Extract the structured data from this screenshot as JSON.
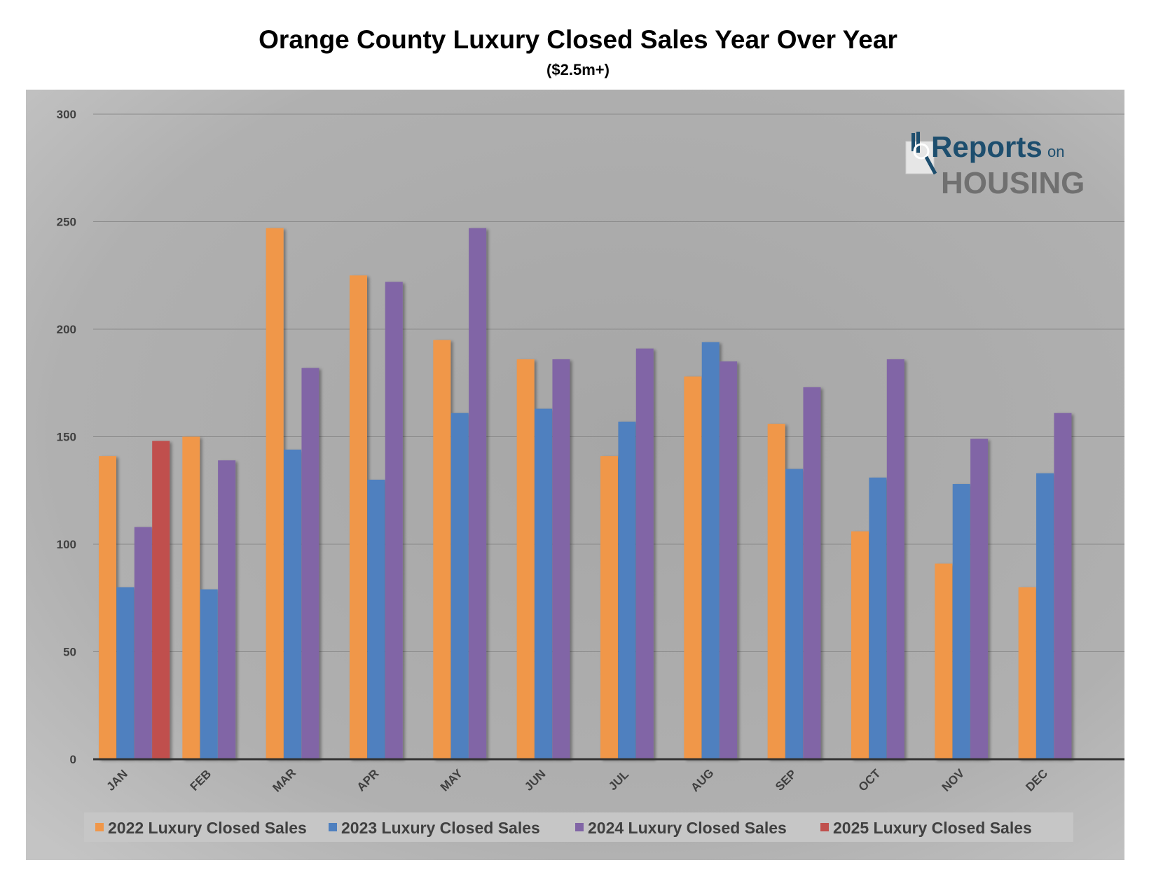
{
  "chart_data": {
    "type": "bar",
    "title": "Orange County Luxury Closed Sales Year Over Year",
    "subtitle": "($2.5m+)",
    "xlabel": "",
    "ylabel": "",
    "ylim": [
      0,
      300
    ],
    "yticks": [
      0,
      50,
      100,
      150,
      200,
      250,
      300
    ],
    "grid": true,
    "legend_position": "bottom",
    "categories": [
      "JAN",
      "FEB",
      "MAR",
      "APR",
      "MAY",
      "JUN",
      "JUL",
      "AUG",
      "SEP",
      "OCT",
      "NOV",
      "DEC"
    ],
    "series": [
      {
        "name": "2022 Luxury Closed Sales",
        "color": "#f0974a",
        "values": [
          141,
          150,
          247,
          225,
          195,
          186,
          141,
          178,
          156,
          106,
          91,
          80
        ]
      },
      {
        "name": "2023 Luxury Closed Sales",
        "color": "#4f80bf",
        "values": [
          80,
          79,
          144,
          130,
          161,
          163,
          157,
          194,
          135,
          131,
          128,
          133
        ]
      },
      {
        "name": "2024 Luxury Closed Sales",
        "color": "#8165a6",
        "values": [
          108,
          139,
          182,
          222,
          247,
          186,
          191,
          185,
          173,
          186,
          149,
          161
        ]
      },
      {
        "name": "2025 Luxury Closed Sales",
        "color": "#c0504d",
        "values": [
          148,
          null,
          null,
          null,
          null,
          null,
          null,
          null,
          null,
          null,
          null,
          null
        ]
      }
    ]
  },
  "logo": {
    "text_top": "Reports",
    "text_on": "on",
    "text_bottom": "HOUSING",
    "color_dark": "#1d4e6e",
    "color_gray": "#707070"
  }
}
